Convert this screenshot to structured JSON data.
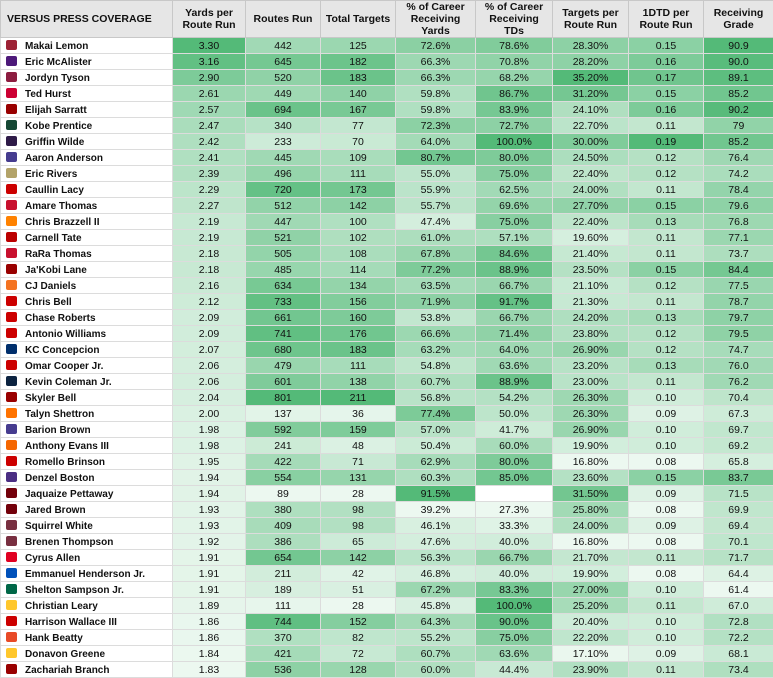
{
  "header": {
    "title": "VERSUS PRESS COVERAGE",
    "columns": [
      "Yards per Route Run",
      "Routes Run",
      "Total Targets",
      "% of Career Receiving Yards",
      "% of Career Receiving TDs",
      "Targets per Route Run",
      "1DTD per Route Run",
      "Receiving Grade"
    ]
  },
  "table": {
    "rows": [
      {
        "name": "Makai Lemon",
        "cells": [
          "3.30",
          "442",
          "125",
          "72.6%",
          "78.6%",
          "28.30%",
          "0.15",
          "90.9"
        ]
      },
      {
        "name": "Eric McAlister",
        "cells": [
          "3.16",
          "645",
          "182",
          "66.3%",
          "70.8%",
          "28.20%",
          "0.16",
          "90.0"
        ]
      },
      {
        "name": "Jordyn Tyson",
        "cells": [
          "2.90",
          "520",
          "183",
          "66.3%",
          "68.2%",
          "35.20%",
          "0.17",
          "89.1"
        ]
      },
      {
        "name": "Ted Hurst",
        "cells": [
          "2.61",
          "449",
          "140",
          "59.8%",
          "86.7%",
          "31.20%",
          "0.15",
          "85.2"
        ]
      },
      {
        "name": "Elijah Sarratt",
        "cells": [
          "2.57",
          "694",
          "167",
          "59.8%",
          "83.9%",
          "24.10%",
          "0.16",
          "90.2"
        ]
      },
      {
        "name": "Kobe Prentice",
        "cells": [
          "2.47",
          "340",
          "77",
          "72.3%",
          "72.7%",
          "22.70%",
          "0.11",
          "79"
        ]
      },
      {
        "name": "Griffin Wilde",
        "cells": [
          "2.42",
          "233",
          "70",
          "64.0%",
          "100.0%",
          "30.00%",
          "0.19",
          "85.2"
        ]
      },
      {
        "name": "Aaron Anderson",
        "cells": [
          "2.41",
          "445",
          "109",
          "80.7%",
          "80.0%",
          "24.50%",
          "0.12",
          "76.4"
        ]
      },
      {
        "name": "Eric Rivers",
        "cells": [
          "2.39",
          "496",
          "111",
          "55.0%",
          "75.0%",
          "22.40%",
          "0.12",
          "74.2"
        ]
      },
      {
        "name": "Caullin Lacy",
        "cells": [
          "2.29",
          "720",
          "173",
          "55.9%",
          "62.5%",
          "24.00%",
          "0.11",
          "78.4"
        ]
      },
      {
        "name": "Amare Thomas",
        "cells": [
          "2.27",
          "512",
          "142",
          "55.7%",
          "69.6%",
          "27.70%",
          "0.15",
          "79.6"
        ]
      },
      {
        "name": "Chris Brazzell II",
        "cells": [
          "2.19",
          "447",
          "100",
          "47.4%",
          "75.0%",
          "22.40%",
          "0.13",
          "76.8"
        ]
      },
      {
        "name": "Carnell Tate",
        "cells": [
          "2.19",
          "521",
          "102",
          "61.0%",
          "57.1%",
          "19.60%",
          "0.11",
          "77.1"
        ]
      },
      {
        "name": "RaRa Thomas",
        "cells": [
          "2.18",
          "505",
          "108",
          "67.8%",
          "84.6%",
          "21.40%",
          "0.11",
          "73.7"
        ]
      },
      {
        "name": "Ja'Kobi Lane",
        "cells": [
          "2.18",
          "485",
          "114",
          "77.2%",
          "88.9%",
          "23.50%",
          "0.15",
          "84.4"
        ]
      },
      {
        "name": "CJ Daniels",
        "cells": [
          "2.16",
          "634",
          "134",
          "63.5%",
          "66.7%",
          "21.10%",
          "0.12",
          "77.5"
        ]
      },
      {
        "name": "Chris Bell",
        "cells": [
          "2.12",
          "733",
          "156",
          "71.9%",
          "91.7%",
          "21.30%",
          "0.11",
          "78.7"
        ]
      },
      {
        "name": "Chase Roberts",
        "cells": [
          "2.09",
          "661",
          "160",
          "53.8%",
          "66.7%",
          "24.20%",
          "0.13",
          "79.7"
        ]
      },
      {
        "name": "Antonio Williams",
        "cells": [
          "2.09",
          "741",
          "176",
          "66.6%",
          "71.4%",
          "23.80%",
          "0.12",
          "79.5"
        ]
      },
      {
        "name": "KC Concepcion",
        "cells": [
          "2.07",
          "680",
          "183",
          "63.2%",
          "64.0%",
          "26.90%",
          "0.12",
          "74.7"
        ]
      },
      {
        "name": "Omar Cooper Jr.",
        "cells": [
          "2.06",
          "479",
          "111",
          "54.8%",
          "63.6%",
          "23.20%",
          "0.13",
          "76.0"
        ]
      },
      {
        "name": "Kevin Coleman Jr.",
        "cells": [
          "2.06",
          "601",
          "138",
          "60.7%",
          "88.9%",
          "23.00%",
          "0.11",
          "76.2"
        ]
      },
      {
        "name": "Skyler Bell",
        "cells": [
          "2.04",
          "801",
          "211",
          "56.8%",
          "54.2%",
          "26.30%",
          "0.10",
          "70.4"
        ]
      },
      {
        "name": "Talyn Shettron",
        "cells": [
          "2.00",
          "137",
          "36",
          "77.4%",
          "50.0%",
          "26.30%",
          "0.09",
          "67.3"
        ]
      },
      {
        "name": "Barion Brown",
        "cells": [
          "1.98",
          "592",
          "159",
          "57.0%",
          "41.7%",
          "26.90%",
          "0.10",
          "69.7"
        ]
      },
      {
        "name": "Anthony Evans III",
        "cells": [
          "1.98",
          "241",
          "48",
          "50.4%",
          "60.0%",
          "19.90%",
          "0.10",
          "69.2"
        ]
      },
      {
        "name": "Romello Brinson",
        "cells": [
          "1.95",
          "422",
          "71",
          "62.9%",
          "80.0%",
          "16.80%",
          "0.08",
          "65.8"
        ]
      },
      {
        "name": "Denzel Boston",
        "cells": [
          "1.94",
          "554",
          "131",
          "60.3%",
          "85.0%",
          "23.60%",
          "0.15",
          "83.7"
        ]
      },
      {
        "name": "Jaquaize Pettaway",
        "cells": [
          "1.94",
          "89",
          "28",
          "91.5%",
          null,
          "31.50%",
          "0.09",
          "71.5"
        ]
      },
      {
        "name": "Jared Brown",
        "cells": [
          "1.93",
          "380",
          "98",
          "39.2%",
          "27.3%",
          "25.80%",
          "0.08",
          "69.9"
        ]
      },
      {
        "name": "Squirrel White",
        "cells": [
          "1.93",
          "409",
          "98",
          "46.1%",
          "33.3%",
          "24.00%",
          "0.09",
          "69.4"
        ]
      },
      {
        "name": "Brenen Thompson",
        "cells": [
          "1.92",
          "386",
          "65",
          "47.6%",
          "40.0%",
          "16.80%",
          "0.08",
          "70.1"
        ]
      },
      {
        "name": "Cyrus Allen",
        "cells": [
          "1.91",
          "654",
          "142",
          "56.3%",
          "66.7%",
          "21.70%",
          "0.11",
          "71.7"
        ]
      },
      {
        "name": "Emmanuel Henderson Jr.",
        "cells": [
          "1.91",
          "211",
          "42",
          "46.8%",
          "40.0%",
          "19.90%",
          "0.08",
          "64.4"
        ]
      },
      {
        "name": "Shelton Sampson Jr.",
        "cells": [
          "1.91",
          "189",
          "51",
          "67.2%",
          "83.3%",
          "27.00%",
          "0.10",
          "61.4"
        ]
      },
      {
        "name": "Christian Leary",
        "cells": [
          "1.89",
          "111",
          "28",
          "45.8%",
          "100.0%",
          "25.20%",
          "0.11",
          "67.0"
        ]
      },
      {
        "name": "Harrison Wallace III",
        "cells": [
          "1.86",
          "744",
          "152",
          "64.3%",
          "90.0%",
          "20.40%",
          "0.10",
          "72.8"
        ]
      },
      {
        "name": "Hank Beatty",
        "cells": [
          "1.86",
          "370",
          "82",
          "55.2%",
          "75.0%",
          "22.20%",
          "0.10",
          "72.2"
        ]
      },
      {
        "name": "Donavon Greene",
        "cells": [
          "1.84",
          "421",
          "72",
          "60.7%",
          "63.6%",
          "17.10%",
          "0.09",
          "68.1"
        ]
      },
      {
        "name": "Zachariah Branch",
        "cells": [
          "1.83",
          "536",
          "128",
          "60.0%",
          "44.4%",
          "23.90%",
          "0.11",
          "73.4"
        ]
      }
    ]
  }
}
